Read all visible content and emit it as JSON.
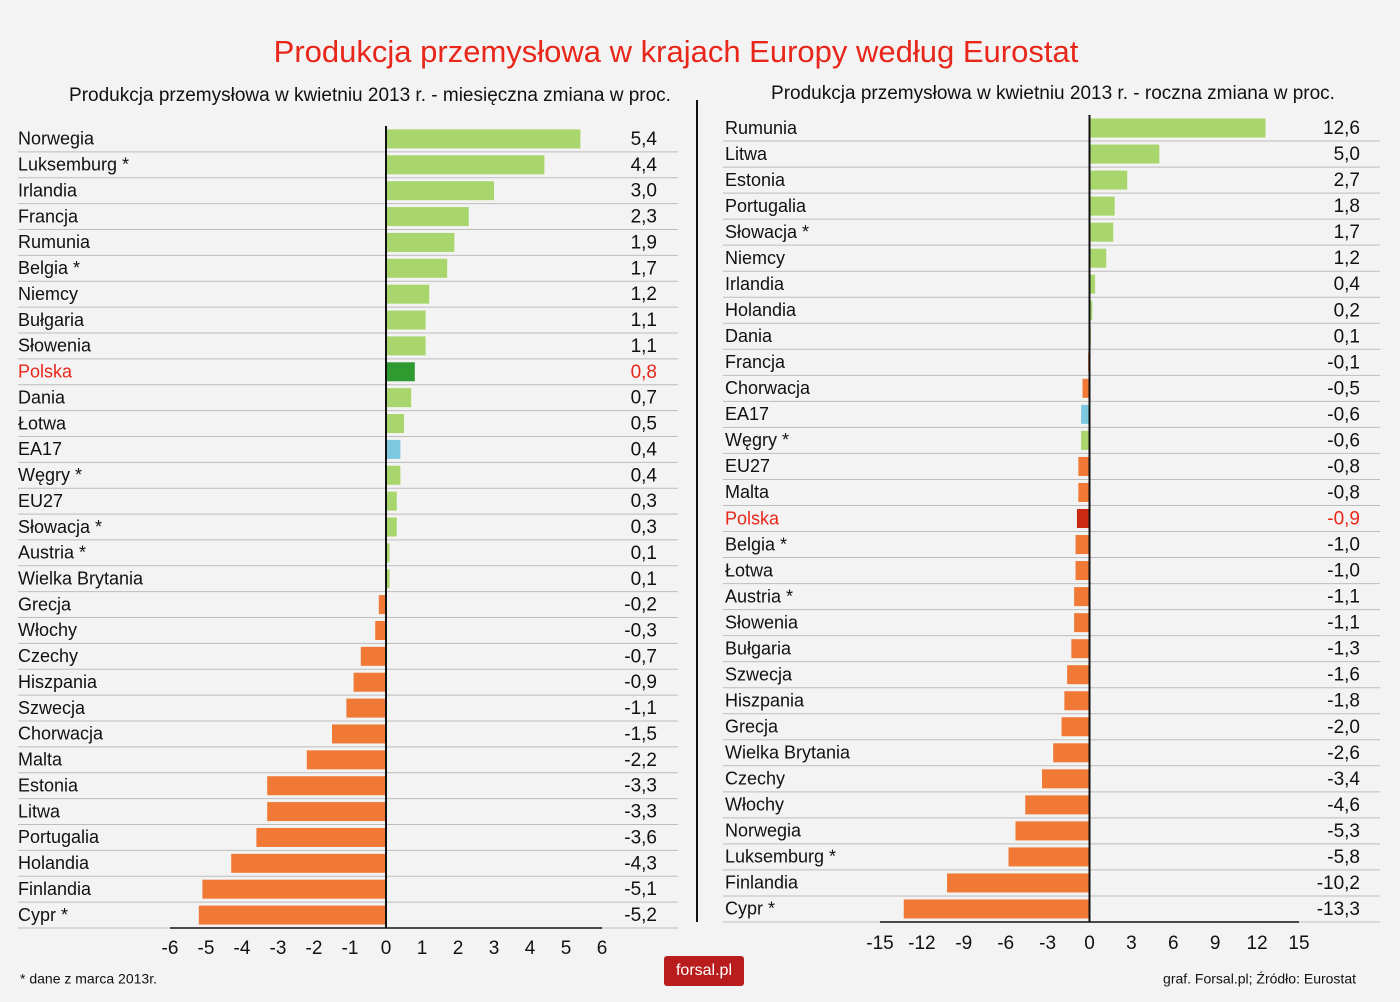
{
  "title": "Produkcja przemysłowa w krajach Europy według Eurostat",
  "footnote": "* dane z marca 2013r.",
  "source": "graf. Forsal.pl; Źródło: Eurostat",
  "logo": "forsal.pl",
  "chart_data": [
    {
      "type": "hbar",
      "title": "Produkcja przemysłowa w kwietniu 2013 r. - miesięczna zmiana w proc.",
      "categories": [
        "Norwegia",
        "Luksemburg *",
        "Irlandia",
        "Francja",
        "Rumunia",
        "Belgia *",
        "Niemcy",
        "Bułgaria",
        "Słowenia",
        "Polska",
        "Dania",
        "Łotwa",
        "EA17",
        "Węgry *",
        "EU27",
        "Słowacja *",
        "Austria *",
        "Wielka Brytania",
        "Grecja",
        "Włochy",
        "Czechy",
        "Hiszpania",
        "Szwecja",
        "Chorwacja",
        "Malta",
        "Estonia",
        "Litwa",
        "Portugalia",
        "Holandia",
        "Finlandia",
        "Cypr *"
      ],
      "values": [
        5.4,
        4.4,
        3.0,
        2.3,
        1.9,
        1.7,
        1.2,
        1.1,
        1.1,
        0.8,
        0.7,
        0.5,
        0.4,
        0.4,
        0.3,
        0.3,
        0.1,
        0.1,
        -0.2,
        -0.3,
        -0.7,
        -0.9,
        -1.1,
        -1.5,
        -2.2,
        -3.3,
        -3.3,
        -3.6,
        -4.3,
        -5.1,
        -5.2
      ],
      "value_labels": [
        "5,4",
        "4,4",
        "3,0",
        "2,3",
        "1,9",
        "1,7",
        "1,2",
        "1,1",
        "1,1",
        "0,8",
        "0,7",
        "0,5",
        "0,4",
        "0,4",
        "0,3",
        "0,3",
        "0,1",
        "0,1",
        "-0,2",
        "-0,3",
        "-0,7",
        "-0,9",
        "-1,1",
        "-1,5",
        "-2,2",
        "-3,3",
        "-3,3",
        "-3,6",
        "-4,3",
        "-5,1",
        "-5,2"
      ],
      "colors": [
        "#a8d66c",
        "#a8d66c",
        "#a8d66c",
        "#a8d66c",
        "#a8d66c",
        "#a8d66c",
        "#a8d66c",
        "#a8d66c",
        "#a8d66c",
        "#2f9a2f",
        "#a8d66c",
        "#a8d66c",
        "#7cc8e0",
        "#a8d66c",
        "#a8d66c",
        "#a8d66c",
        "#a8d66c",
        "#a8d66c",
        "#f07a35",
        "#f07a35",
        "#f07a35",
        "#f07a35",
        "#f07a35",
        "#f07a35",
        "#f07a35",
        "#f07a35",
        "#f07a35",
        "#f07a35",
        "#f07a35",
        "#f07a35",
        "#f07a35"
      ],
      "highlight": "Polska",
      "highlight_color": "#e8261a",
      "xlim": [
        -6,
        6
      ],
      "xticks": [
        -6,
        -5,
        -4,
        -3,
        -2,
        -1,
        0,
        1,
        2,
        3,
        4,
        5,
        6
      ]
    },
    {
      "type": "hbar",
      "title": "Produkcja przemysłowa w kwietniu 2013 r. - roczna zmiana w proc.",
      "categories": [
        "Rumunia",
        "Litwa",
        "Estonia",
        "Portugalia",
        "Słowacja *",
        "Niemcy",
        "Irlandia",
        "Holandia",
        "Dania",
        "Francja",
        "Chorwacja",
        "EA17",
        "Węgry *",
        "EU27",
        "Malta",
        "Polska",
        "Belgia *",
        "Łotwa",
        "Austria *",
        "Słowenia",
        "Bułgaria",
        "Szwecja",
        "Hiszpania",
        "Grecja",
        "Wielka Brytania",
        "Czechy",
        "Włochy",
        "Norwegia",
        "Luksemburg *",
        "Finlandia",
        "Cypr *"
      ],
      "values": [
        12.6,
        5.0,
        2.7,
        1.8,
        1.7,
        1.2,
        0.4,
        0.2,
        0.1,
        -0.1,
        -0.5,
        -0.6,
        -0.6,
        -0.8,
        -0.8,
        -0.9,
        -1.0,
        -1.0,
        -1.1,
        -1.1,
        -1.3,
        -1.6,
        -1.8,
        -2.0,
        -2.6,
        -3.4,
        -4.6,
        -5.3,
        -5.8,
        -10.2,
        -13.3
      ],
      "value_labels": [
        "12,6",
        "5,0",
        "2,7",
        "1,8",
        "1,7",
        "1,2",
        "0,4",
        "0,2",
        "0,1",
        "-0,1",
        "-0,5",
        "-0,6",
        "-0,6",
        "-0,8",
        "-0,8",
        "-0,9",
        "-1,0",
        "-1,0",
        "-1,1",
        "-1,1",
        "-1,3",
        "-1,6",
        "-1,8",
        "-2,0",
        "-2,6",
        "-3,4",
        "-4,6",
        "-5,3",
        "-5,8",
        "-10,2",
        "-13,3"
      ],
      "colors": [
        "#a8d66c",
        "#a8d66c",
        "#a8d66c",
        "#a8d66c",
        "#a8d66c",
        "#a8d66c",
        "#a8d66c",
        "#a8d66c",
        "#a8d66c",
        "#f07a35",
        "#f07a35",
        "#7cc8e0",
        "#a8d66c",
        "#f07a35",
        "#f07a35",
        "#cc2a10",
        "#f07a35",
        "#f07a35",
        "#f07a35",
        "#f07a35",
        "#f07a35",
        "#f07a35",
        "#f07a35",
        "#f07a35",
        "#f07a35",
        "#f07a35",
        "#f07a35",
        "#f07a35",
        "#f07a35",
        "#f07a35",
        "#f07a35"
      ],
      "highlight": "Polska",
      "highlight_color": "#e8261a",
      "xlim": [
        -15,
        15
      ],
      "xticks": [
        -15,
        -12,
        -9,
        -6,
        -3,
        0,
        3,
        6,
        9,
        12,
        15
      ]
    }
  ]
}
